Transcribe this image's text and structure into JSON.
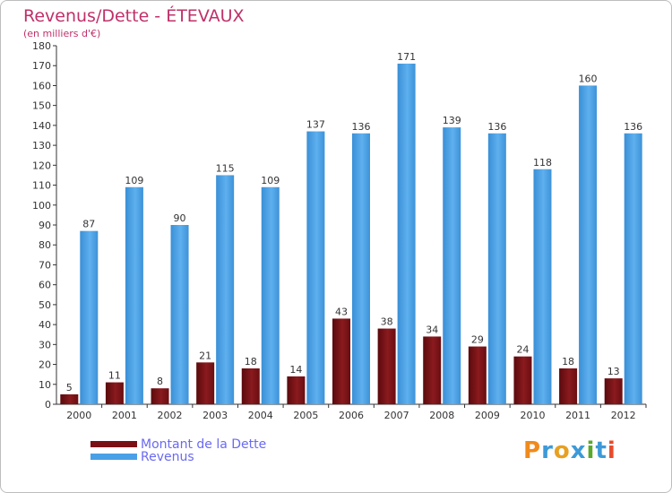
{
  "header": {
    "title": "Revenus/Dette - ÉTEVAUX",
    "subtitle": "(en milliers d'€)"
  },
  "colors": {
    "title": "#c0306a",
    "dette": "#7a1014",
    "revenus": "#4aa0e6",
    "legend_text": "#6a6af0"
  },
  "legend": {
    "dette_label": "Montant de la Dette",
    "revenus_label": "Revenus"
  },
  "brand": {
    "letters": [
      "P",
      "r",
      "o",
      "x",
      "i",
      "t",
      "i"
    ],
    "colors": [
      "#f08a1c",
      "#3d9ad8",
      "#e8a020",
      "#3d9ad8",
      "#5aa82c",
      "#3d9ad8",
      "#e84a2a"
    ]
  },
  "chart_data": {
    "type": "bar",
    "title": "Revenus/Dette - ÉTEVAUX",
    "ylabel": "(en milliers d'€)",
    "categories": [
      "2000",
      "2001",
      "2002",
      "2003",
      "2004",
      "2005",
      "2006",
      "2007",
      "2008",
      "2009",
      "2010",
      "2011",
      "2012"
    ],
    "series": [
      {
        "name": "Montant de la Dette",
        "values": [
          5,
          11,
          8,
          21,
          18,
          14,
          43,
          38,
          34,
          29,
          24,
          18,
          13
        ]
      },
      {
        "name": "Revenus",
        "values": [
          87,
          109,
          90,
          115,
          109,
          137,
          136,
          171,
          139,
          136,
          118,
          160,
          136
        ]
      }
    ],
    "ylim": [
      0,
      180
    ],
    "yticks": [
      0,
      10,
      20,
      30,
      40,
      50,
      60,
      70,
      80,
      90,
      100,
      110,
      120,
      130,
      140,
      150,
      160,
      170,
      180
    ],
    "grid": false,
    "legend": "bottom-left"
  }
}
